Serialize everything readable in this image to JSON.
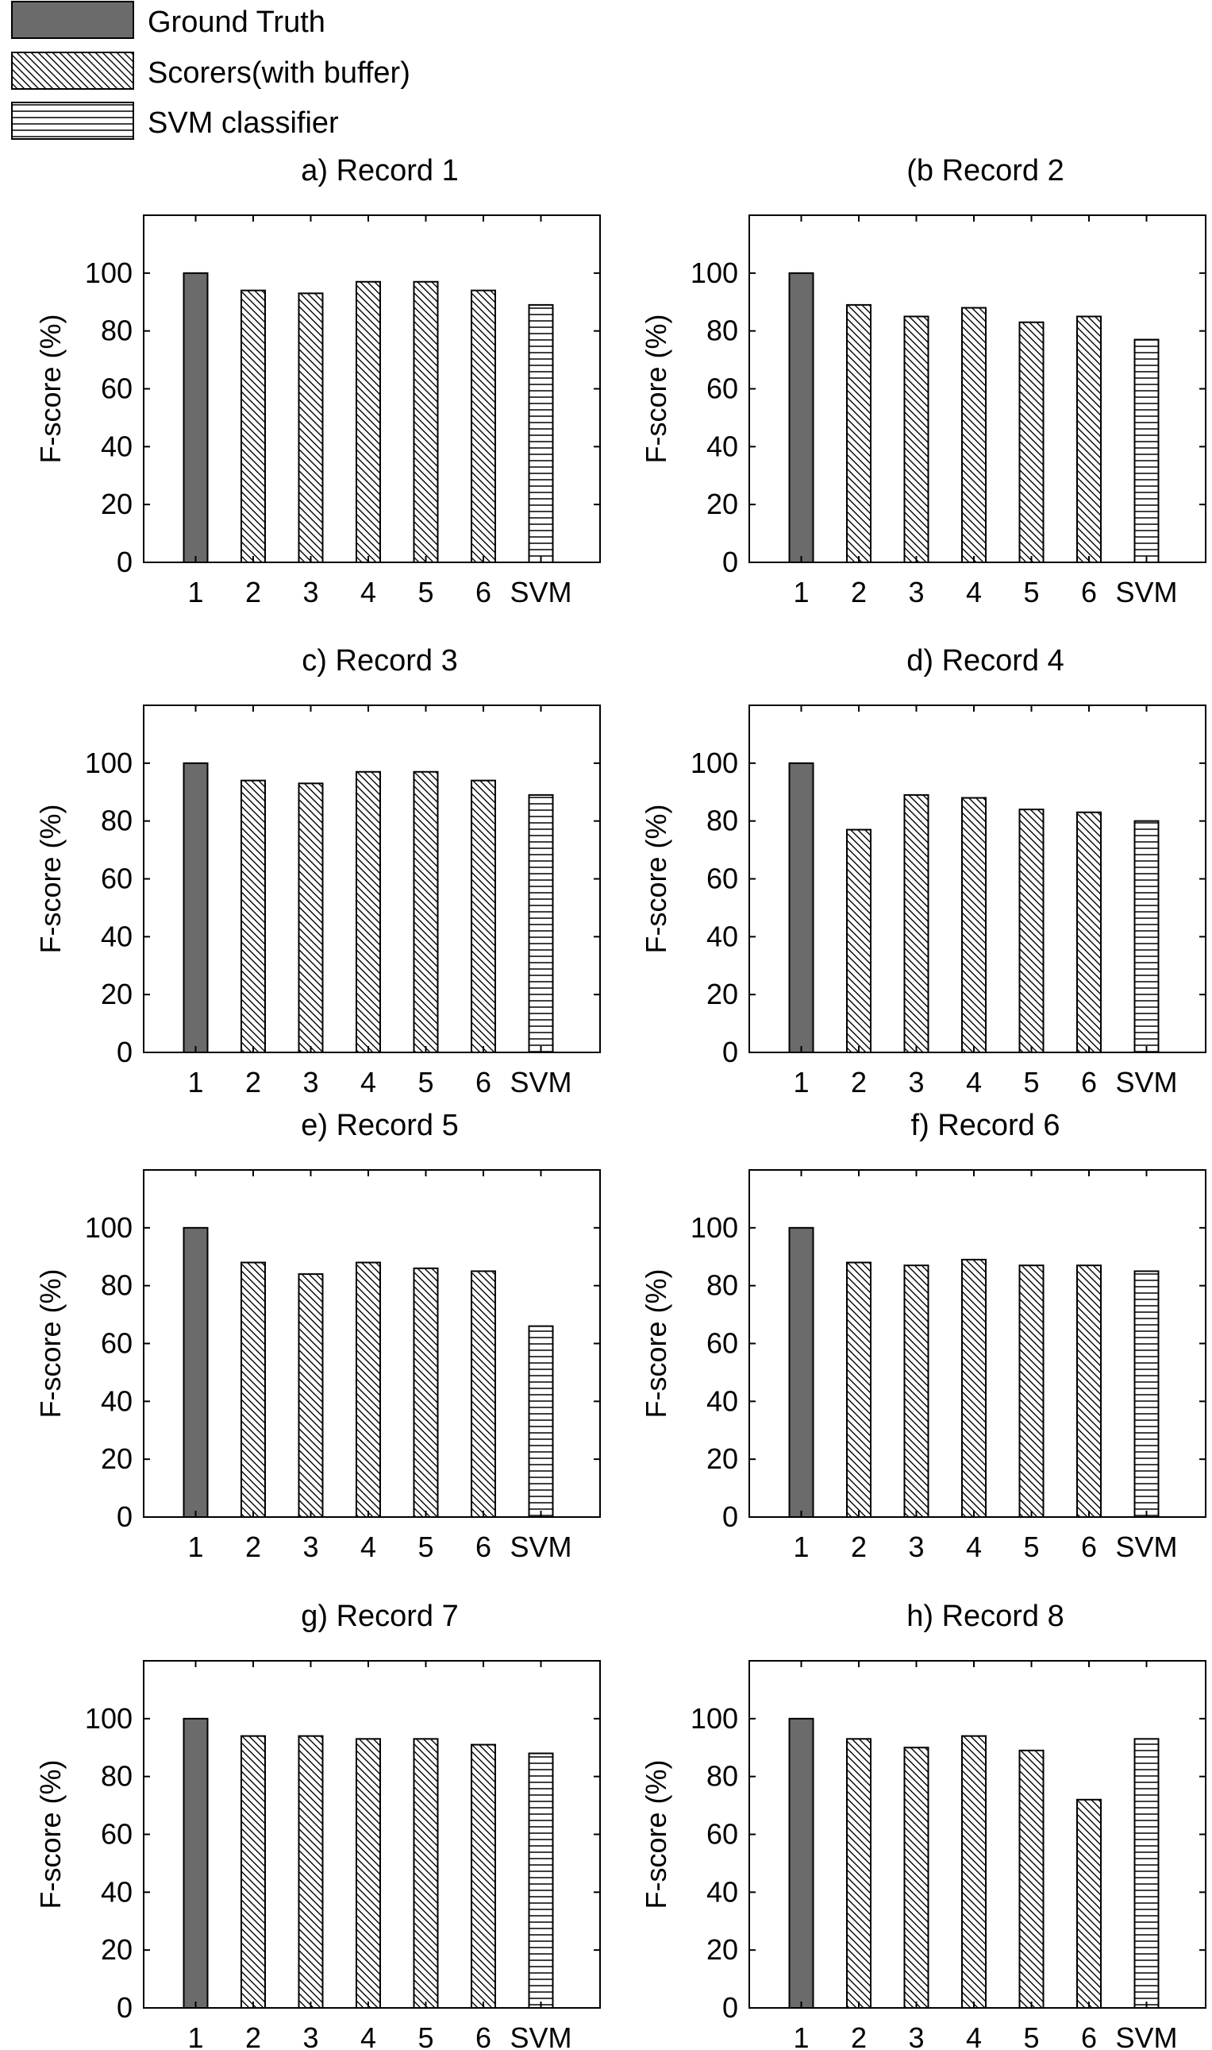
{
  "legend": [
    {
      "label": "Ground Truth",
      "pattern": "solid"
    },
    {
      "label": "Scorers(with buffer)",
      "pattern": "diagonal"
    },
    {
      "label": "SVM classifier",
      "pattern": "horizontal"
    }
  ],
  "colors": {
    "ground_truth_fill": "#6b6b6b",
    "axis": "#000000",
    "background": "#ffffff"
  },
  "chart_data": [
    {
      "type": "bar",
      "title": "a) Record 1",
      "ylabel": "F-score (%)",
      "categories": [
        "1",
        "2",
        "3",
        "4",
        "5",
        "6",
        "SVM"
      ],
      "values": [
        100,
        94,
        93,
        97,
        97,
        94,
        89
      ],
      "ylim": [
        0,
        120
      ],
      "yticks": [
        "0",
        "20",
        "40",
        "60",
        "80",
        "100"
      ],
      "grid": false
    },
    {
      "type": "bar",
      "title": "(b Record 2",
      "ylabel": "F-score (%)",
      "categories": [
        "1",
        "2",
        "3",
        "4",
        "5",
        "6",
        "SVM"
      ],
      "values": [
        100,
        89,
        85,
        88,
        83,
        85,
        77
      ],
      "ylim": [
        0,
        120
      ],
      "yticks": [
        "0",
        "20",
        "40",
        "60",
        "80",
        "100"
      ],
      "grid": false
    },
    {
      "type": "bar",
      "title": "c) Record 3",
      "ylabel": "F-score (%)",
      "categories": [
        "1",
        "2",
        "3",
        "4",
        "5",
        "6",
        "SVM"
      ],
      "values": [
        100,
        94,
        93,
        97,
        97,
        94,
        89
      ],
      "ylim": [
        0,
        120
      ],
      "yticks": [
        "0",
        "20",
        "40",
        "60",
        "80",
        "100"
      ],
      "grid": false
    },
    {
      "type": "bar",
      "title": "d) Record 4",
      "ylabel": "F-score (%)",
      "categories": [
        "1",
        "2",
        "3",
        "4",
        "5",
        "6",
        "SVM"
      ],
      "values": [
        100,
        77,
        89,
        88,
        84,
        83,
        80
      ],
      "ylim": [
        0,
        120
      ],
      "yticks": [
        "0",
        "20",
        "40",
        "60",
        "80",
        "100"
      ],
      "grid": false
    },
    {
      "type": "bar",
      "title": "e) Record 5",
      "ylabel": "F-score (%)",
      "categories": [
        "1",
        "2",
        "3",
        "4",
        "5",
        "6",
        "SVM"
      ],
      "values": [
        100,
        88,
        84,
        88,
        86,
        85,
        66
      ],
      "ylim": [
        0,
        120
      ],
      "yticks": [
        "0",
        "20",
        "40",
        "60",
        "80",
        "100"
      ],
      "grid": false
    },
    {
      "type": "bar",
      "title": "f) Record 6",
      "ylabel": "F-score (%)",
      "categories": [
        "1",
        "2",
        "3",
        "4",
        "5",
        "6",
        "SVM"
      ],
      "values": [
        100,
        88,
        87,
        89,
        87,
        87,
        85
      ],
      "ylim": [
        0,
        120
      ],
      "yticks": [
        "0",
        "20",
        "40",
        "60",
        "80",
        "100"
      ],
      "grid": false
    },
    {
      "type": "bar",
      "title": "g) Record 7",
      "ylabel": "F-score (%)",
      "categories": [
        "1",
        "2",
        "3",
        "4",
        "5",
        "6",
        "SVM"
      ],
      "values": [
        100,
        94,
        94,
        93,
        93,
        91,
        88
      ],
      "ylim": [
        0,
        120
      ],
      "yticks": [
        "0",
        "20",
        "40",
        "60",
        "80",
        "100"
      ],
      "grid": false
    },
    {
      "type": "bar",
      "title": "h) Record 8",
      "ylabel": "F-score (%)",
      "categories": [
        "1",
        "2",
        "3",
        "4",
        "5",
        "6",
        "SVM"
      ],
      "values": [
        100,
        93,
        90,
        94,
        89,
        72,
        93
      ],
      "ylim": [
        0,
        120
      ],
      "yticks": [
        "0",
        "20",
        "40",
        "60",
        "80",
        "100"
      ],
      "grid": false
    }
  ]
}
